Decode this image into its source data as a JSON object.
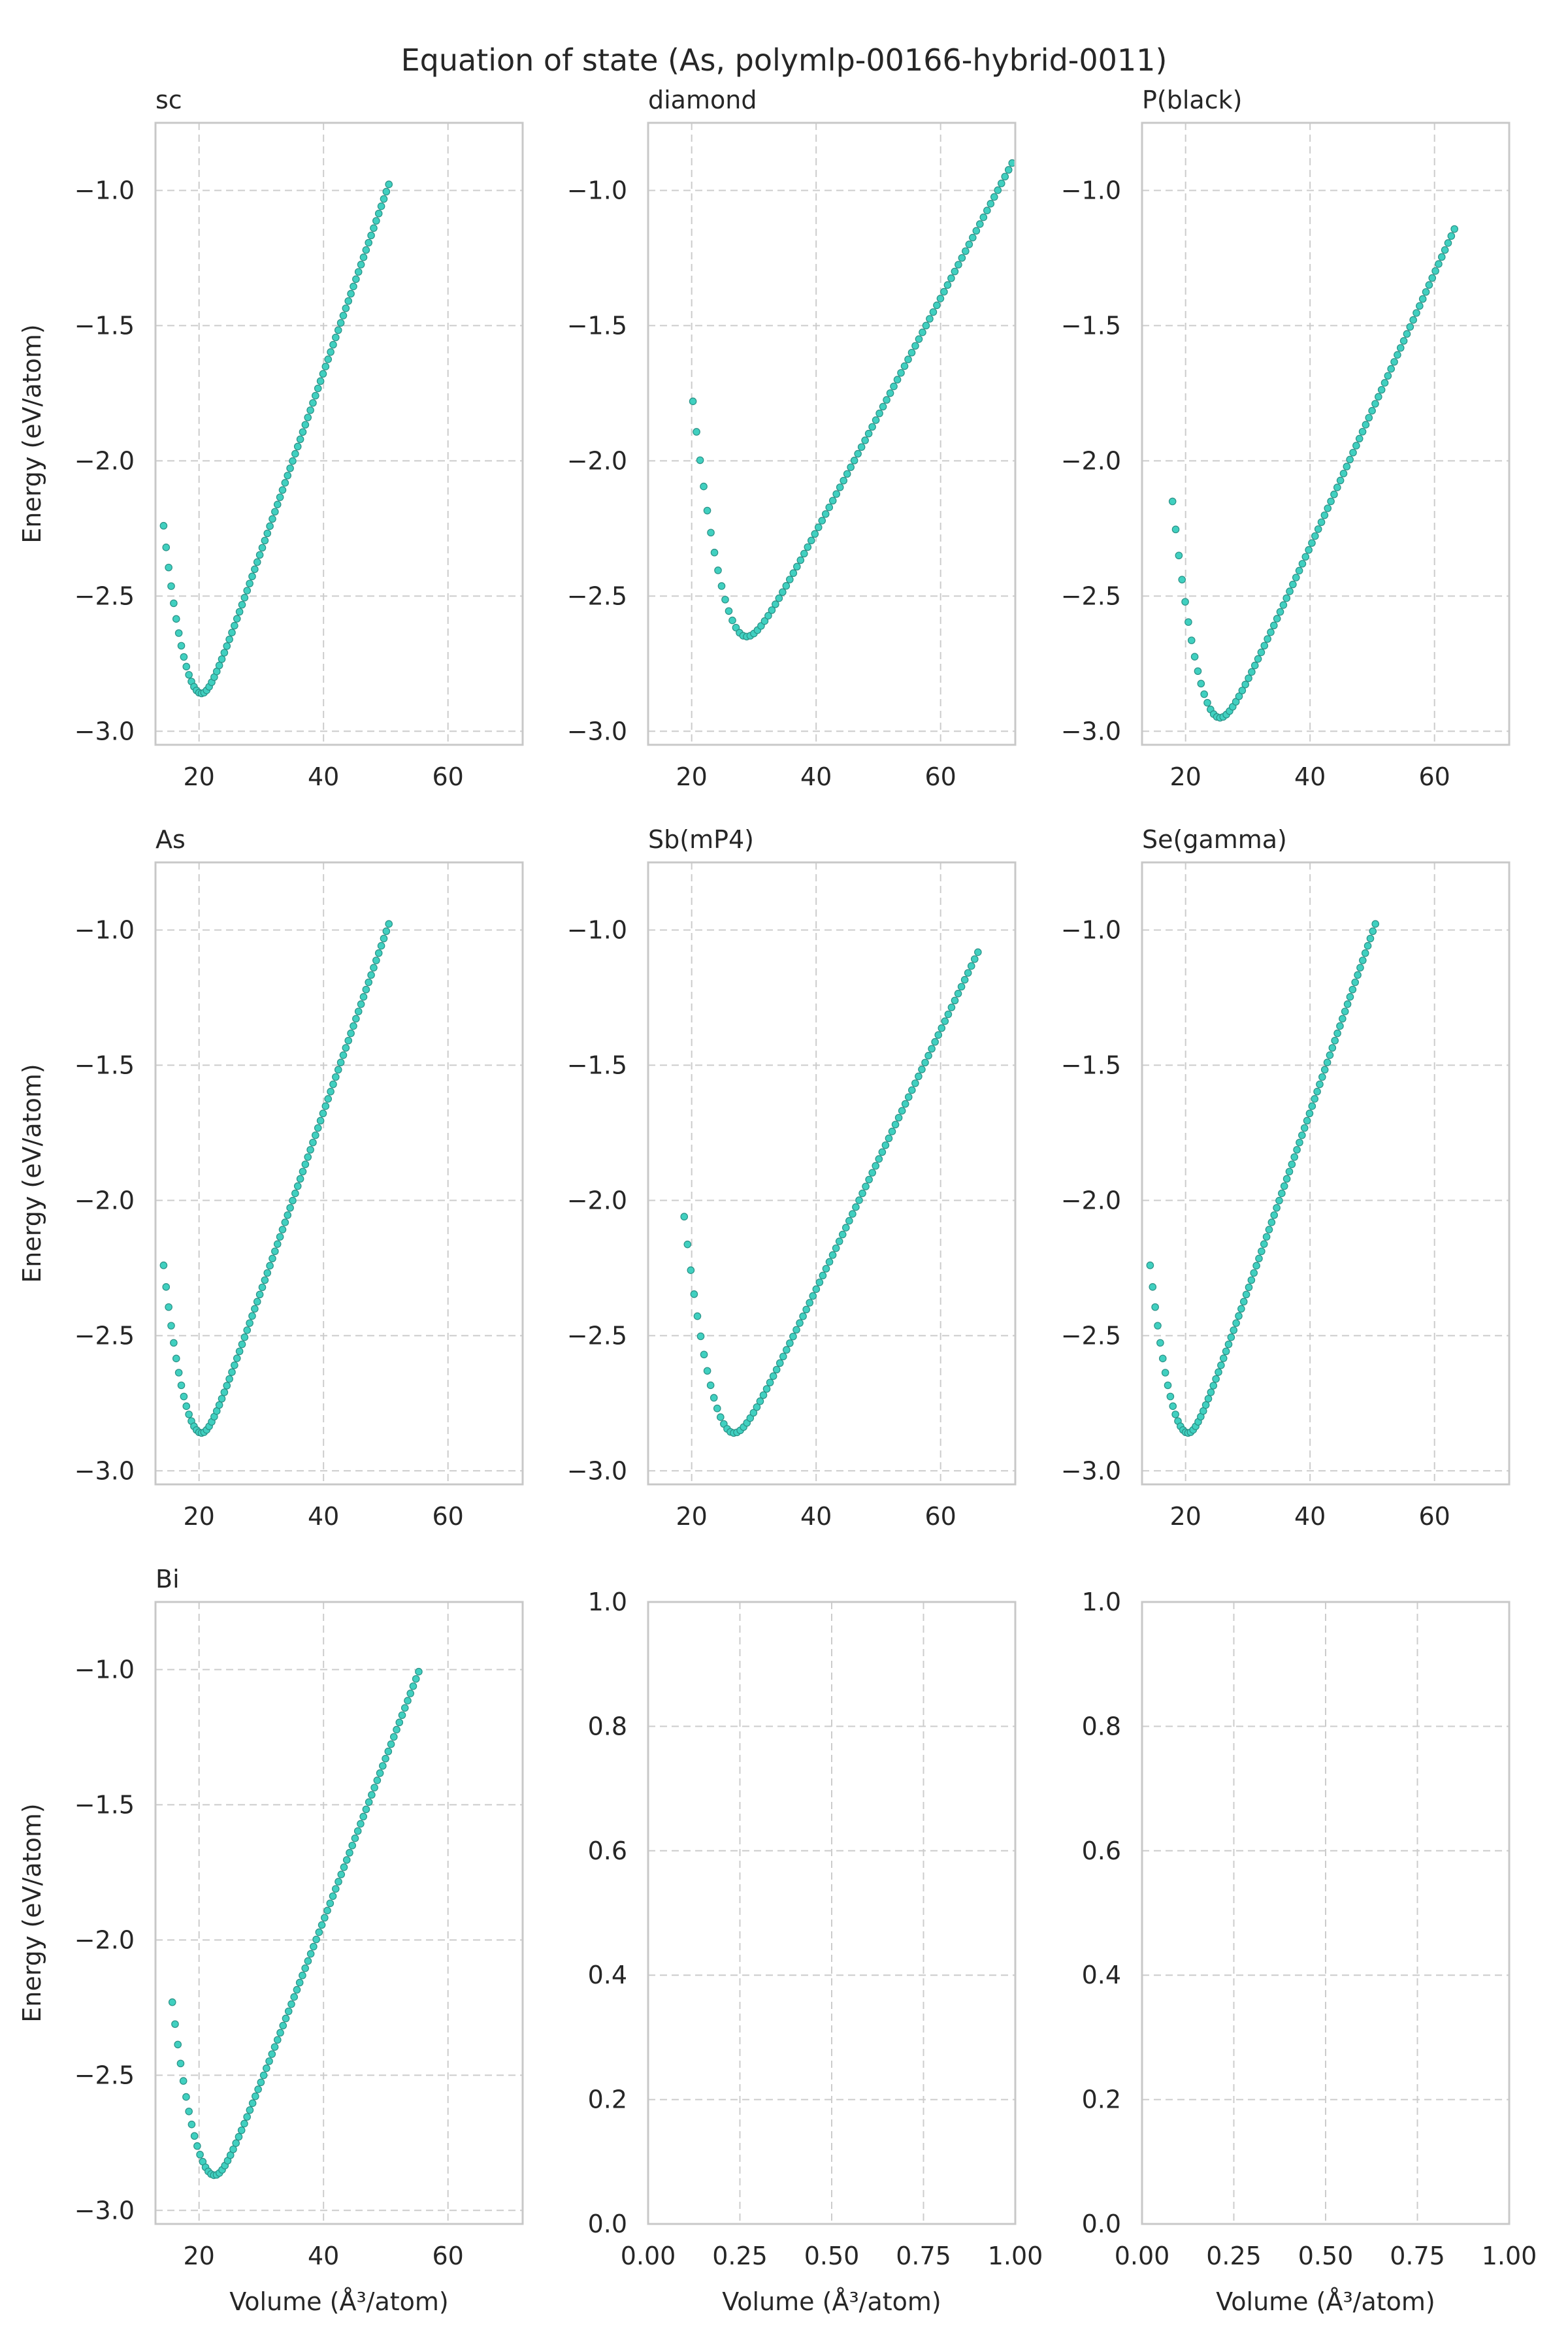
{
  "figure_title": "Equation of state (As, polymlp-00166-hybrid-0011)",
  "xlabel": "Volume (Å³/atom)",
  "ylabel": "Energy (eV/atom)",
  "colors": {
    "marker_fill": "#40d0c0",
    "marker_edge": "#2a9186",
    "grid": "#cccccc",
    "frame": "#c8c8c8",
    "text": "#262626"
  },
  "chart_data": [
    {
      "type": "scatter",
      "title": "sc",
      "xlim": [
        13,
        72
      ],
      "ylim": [
        -3.05,
        -0.75
      ],
      "xticks": [
        20,
        40,
        60
      ],
      "xtick_labels": [
        "20",
        "40",
        "60"
      ],
      "yticks": [
        -3.0,
        -2.5,
        -2.0,
        -1.5,
        -1.0
      ],
      "ytick_labels": [
        "−3.0",
        "−2.5",
        "−2.0",
        "−1.5",
        "−1.0"
      ],
      "xlabel": "",
      "ylabel": "Energy (eV/atom)",
      "grid": true,
      "eos": {
        "V0": 20.4,
        "E0": -2.86,
        "v_min": 14.3,
        "v_max": 50.5,
        "e_at_vmin": -2.24,
        "e_at_vmax": -0.86,
        "points": 90
      }
    },
    {
      "type": "scatter",
      "title": "diamond",
      "xlim": [
        13,
        72
      ],
      "ylim": [
        -3.05,
        -0.75
      ],
      "xticks": [
        20,
        40,
        60
      ],
      "xtick_labels": [
        "20",
        "40",
        "60"
      ],
      "yticks": [
        -3.0,
        -2.5,
        -2.0,
        -1.5,
        -1.0
      ],
      "ytick_labels": [
        "−3.0",
        "−2.5",
        "−2.0",
        "−1.5",
        "−1.0"
      ],
      "xlabel": "",
      "ylabel": "",
      "grid": true,
      "eos": {
        "V0": 28.8,
        "E0": -2.65,
        "v_min": 20.2,
        "v_max": 71.5,
        "e_at_vmin": -1.78,
        "e_at_vmax": -0.79,
        "points": 90
      }
    },
    {
      "type": "scatter",
      "title": "P(black)",
      "xlim": [
        13,
        72
      ],
      "ylim": [
        -3.05,
        -0.75
      ],
      "xticks": [
        20,
        40,
        60
      ],
      "xtick_labels": [
        "20",
        "40",
        "60"
      ],
      "yticks": [
        -3.0,
        -2.5,
        -2.0,
        -1.5,
        -1.0
      ],
      "ytick_labels": [
        "−3.0",
        "−2.5",
        "−2.0",
        "−1.5",
        "−1.0"
      ],
      "xlabel": "",
      "ylabel": "",
      "grid": true,
      "eos": {
        "V0": 25.5,
        "E0": -2.95,
        "v_min": 17.9,
        "v_max": 63.2,
        "e_at_vmin": -2.15,
        "e_at_vmax": -1.03,
        "points": 90
      }
    },
    {
      "type": "scatter",
      "title": "As",
      "xlim": [
        13,
        72
      ],
      "ylim": [
        -3.05,
        -0.75
      ],
      "xticks": [
        20,
        40,
        60
      ],
      "xtick_labels": [
        "20",
        "40",
        "60"
      ],
      "yticks": [
        -3.0,
        -2.5,
        -2.0,
        -1.5,
        -1.0
      ],
      "ytick_labels": [
        "−3.0",
        "−2.5",
        "−2.0",
        "−1.5",
        "−1.0"
      ],
      "xlabel": "",
      "ylabel": "Energy (eV/atom)",
      "grid": true,
      "eos": {
        "V0": 20.4,
        "E0": -2.86,
        "v_min": 14.3,
        "v_max": 50.5,
        "e_at_vmin": -2.24,
        "e_at_vmax": -0.86,
        "points": 90
      }
    },
    {
      "type": "scatter",
      "title": "Sb(mP4)",
      "xlim": [
        13,
        72
      ],
      "ylim": [
        -3.05,
        -0.75
      ],
      "xticks": [
        20,
        40,
        60
      ],
      "xtick_labels": [
        "20",
        "40",
        "60"
      ],
      "yticks": [
        -3.0,
        -2.5,
        -2.0,
        -1.5,
        -1.0
      ],
      "ytick_labels": [
        "−3.0",
        "−2.5",
        "−2.0",
        "−1.5",
        "−1.0"
      ],
      "xlabel": "",
      "ylabel": "",
      "grid": true,
      "eos": {
        "V0": 26.8,
        "E0": -2.86,
        "v_min": 18.8,
        "v_max": 66.0,
        "e_at_vmin": -2.06,
        "e_at_vmax": -0.97,
        "points": 90
      }
    },
    {
      "type": "scatter",
      "title": "Se(gamma)",
      "xlim": [
        13,
        72
      ],
      "ylim": [
        -3.05,
        -0.75
      ],
      "xticks": [
        20,
        40,
        60
      ],
      "xtick_labels": [
        "20",
        "40",
        "60"
      ],
      "yticks": [
        -3.0,
        -2.5,
        -2.0,
        -1.5,
        -1.0
      ],
      "ytick_labels": [
        "−3.0",
        "−2.5",
        "−2.0",
        "−1.5",
        "−1.0"
      ],
      "xlabel": "",
      "ylabel": "",
      "grid": true,
      "eos": {
        "V0": 20.4,
        "E0": -2.86,
        "v_min": 14.3,
        "v_max": 50.5,
        "e_at_vmin": -2.24,
        "e_at_vmax": -0.86,
        "points": 90
      }
    },
    {
      "type": "scatter",
      "title": "Bi",
      "xlim": [
        13,
        72
      ],
      "ylim": [
        -3.05,
        -0.75
      ],
      "xticks": [
        20,
        40,
        60
      ],
      "xtick_labels": [
        "20",
        "40",
        "60"
      ],
      "yticks": [
        -3.0,
        -2.5,
        -2.0,
        -1.5,
        -1.0
      ],
      "ytick_labels": [
        "−3.0",
        "−2.5",
        "−2.0",
        "−1.5",
        "−1.0"
      ],
      "xlabel": "Volume (Å³/atom)",
      "ylabel": "Energy (eV/atom)",
      "grid": true,
      "eos": {
        "V0": 22.5,
        "E0": -2.87,
        "v_min": 15.7,
        "v_max": 55.3,
        "e_at_vmin": -2.23,
        "e_at_vmax": -0.89,
        "points": 90
      }
    },
    {
      "type": "scatter",
      "title": "",
      "xlim": [
        0,
        1
      ],
      "ylim": [
        0,
        1
      ],
      "xticks": [
        0,
        0.25,
        0.5,
        0.75,
        1.0
      ],
      "xtick_labels": [
        "0.00",
        "0.25",
        "0.50",
        "0.75",
        "1.00"
      ],
      "yticks": [
        0,
        0.2,
        0.4,
        0.6,
        0.8,
        1.0
      ],
      "ytick_labels": [
        "0.0",
        "0.2",
        "0.4",
        "0.6",
        "0.8",
        "1.0"
      ],
      "xlabel": "Volume (Å³/atom)",
      "ylabel": "",
      "grid": true,
      "empty": true
    },
    {
      "type": "scatter",
      "title": "",
      "xlim": [
        0,
        1
      ],
      "ylim": [
        0,
        1
      ],
      "xticks": [
        0,
        0.25,
        0.5,
        0.75,
        1.0
      ],
      "xtick_labels": [
        "0.00",
        "0.25",
        "0.50",
        "0.75",
        "1.00"
      ],
      "yticks": [
        0,
        0.2,
        0.4,
        0.6,
        0.8,
        1.0
      ],
      "ytick_labels": [
        "0.0",
        "0.2",
        "0.4",
        "0.6",
        "0.8",
        "1.0"
      ],
      "xlabel": "Volume (Å³/atom)",
      "ylabel": "",
      "grid": true,
      "empty": true
    }
  ]
}
